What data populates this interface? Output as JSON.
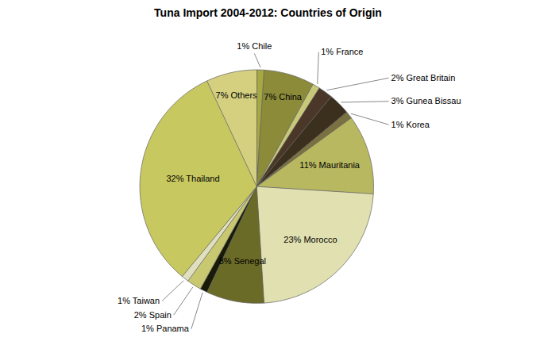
{
  "chart_data": {
    "type": "pie",
    "title": "Tuna Import 2004-2012: Countries of Origin",
    "categories": [
      "Chile",
      "China",
      "France",
      "Great Britain",
      "Gunea Bissau",
      "Korea",
      "Mauritania",
      "Morocco",
      "Senegal",
      "Panama",
      "Spain",
      "Taiwan",
      "Thailand",
      "Others"
    ],
    "values": [
      1,
      7,
      1,
      2,
      3,
      1,
      11,
      23,
      8,
      1,
      2,
      1,
      32,
      7
    ],
    "value_labels": [
      "1% Chile",
      "7% China",
      "1% France",
      "2% Great Britain",
      "3% Gunea Bissau",
      "1% Korea",
      "11% Mauritania",
      "23% Morocco",
      "8% Senegal",
      "1% Panama",
      "2% Spain",
      "1% Taiwan",
      "32% Thailand",
      "7% Others"
    ],
    "colors": [
      "#A8A840",
      "#8B8B3A",
      "#C8C878",
      "#4A3728",
      "#3B2F1E",
      "#7A7040",
      "#B8B860",
      "#E0E0B0",
      "#6B6B28",
      "#1A1A08",
      "#C8C870",
      "#E0E0C0",
      "#C8C860",
      "#D4D080"
    ],
    "data_labels": true
  }
}
